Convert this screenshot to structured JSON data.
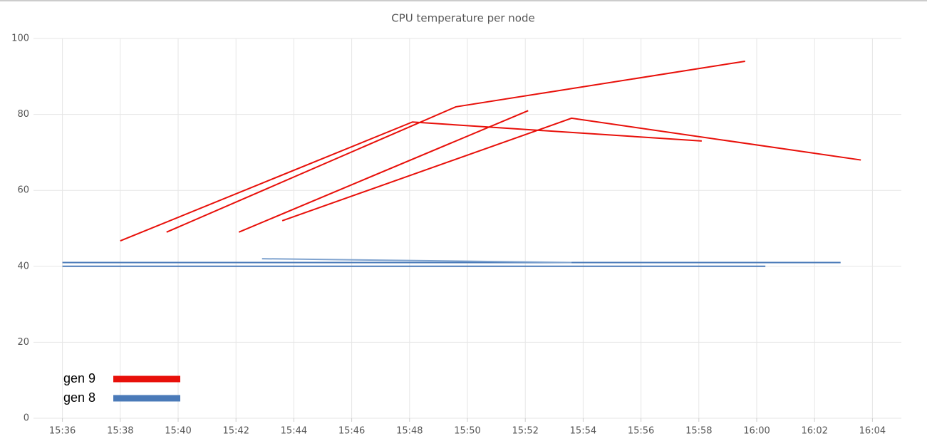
{
  "chart_data": {
    "type": "line",
    "title": "CPU temperature per node",
    "xlim": [
      935,
      965
    ],
    "xticks": [
      {
        "value": 936,
        "label": "15:36"
      },
      {
        "value": 938,
        "label": "15:38"
      },
      {
        "value": 940,
        "label": "15:40"
      },
      {
        "value": 942,
        "label": "15:42"
      },
      {
        "value": 944,
        "label": "15:44"
      },
      {
        "value": 946,
        "label": "15:46"
      },
      {
        "value": 948,
        "label": "15:48"
      },
      {
        "value": 950,
        "label": "15:50"
      },
      {
        "value": 952,
        "label": "15:52"
      },
      {
        "value": 954,
        "label": "15:54"
      },
      {
        "value": 956,
        "label": "15:56"
      },
      {
        "value": 958,
        "label": "15:58"
      },
      {
        "value": 960,
        "label": "16:00"
      },
      {
        "value": 962,
        "label": "16:02"
      },
      {
        "value": 964,
        "label": "16:04"
      }
    ],
    "ylim": [
      0,
      100
    ],
    "yticks": [
      0,
      20,
      40,
      60,
      80,
      100
    ],
    "grid": true,
    "legend": [
      {
        "name": "gen 9",
        "color": "#e8100a"
      },
      {
        "name": "gen 8",
        "color": "#4a7ab8"
      }
    ],
    "series": [
      {
        "color": "#e8100a",
        "x": [
          938,
          948.1,
          958.1
        ],
        "values": [
          46.7,
          78,
          73
        ]
      },
      {
        "color": "#e8100a",
        "x": [
          939.6,
          949.6,
          959.6
        ],
        "values": [
          49,
          82,
          94
        ]
      },
      {
        "color": "#e8100a",
        "x": [
          942.1,
          952.1
        ],
        "values": [
          49,
          81
        ]
      },
      {
        "color": "#e8100a",
        "x": [
          943.6,
          953.6,
          963.6
        ],
        "values": [
          52,
          79,
          68
        ]
      },
      {
        "color": "#4a7ab8",
        "x": [
          936,
          962.9
        ],
        "values": [
          41,
          41
        ]
      },
      {
        "color": "#4a7ab8",
        "x": [
          936,
          960.3
        ],
        "values": [
          40,
          40
        ]
      },
      {
        "color": "#7fa3cf",
        "x": [
          942.9,
          953.6
        ],
        "values": [
          42,
          41
        ]
      }
    ]
  }
}
